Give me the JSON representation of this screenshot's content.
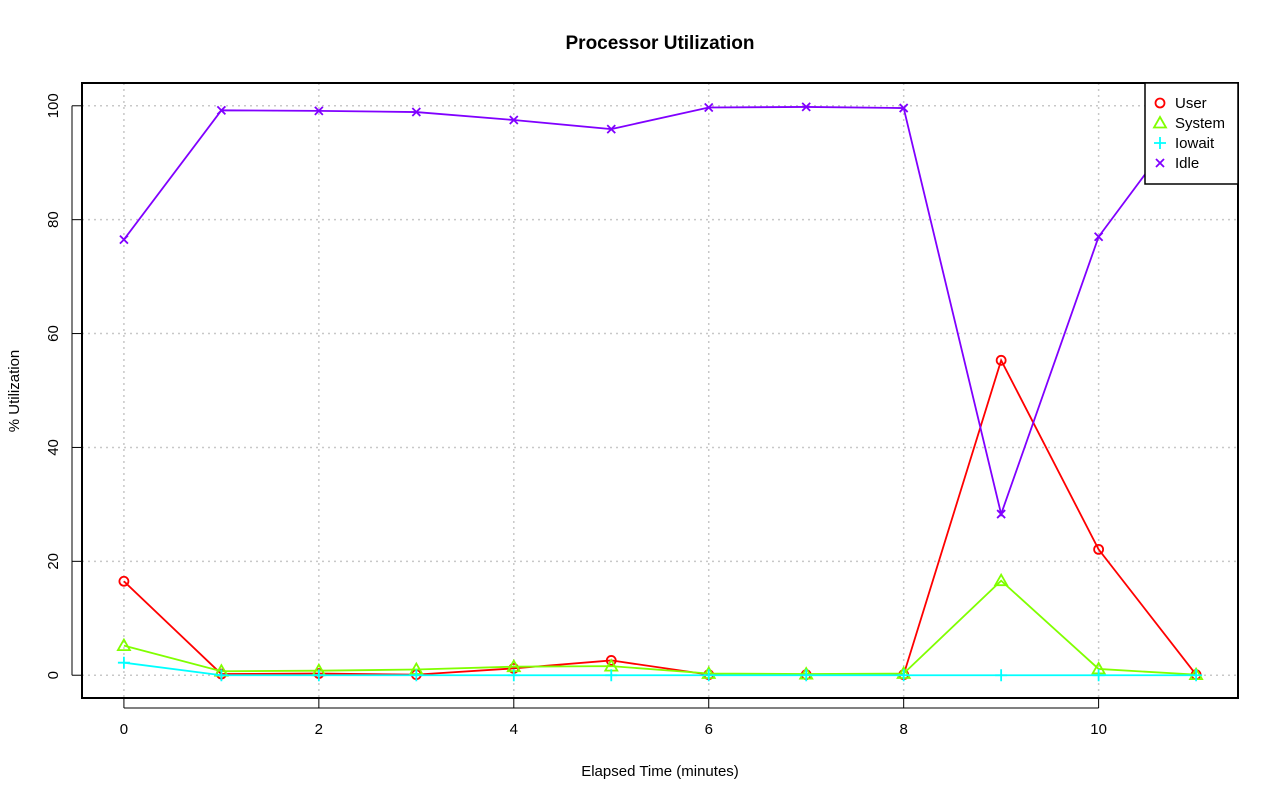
{
  "chart_data": {
    "type": "line",
    "title": "Processor Utilization",
    "xlabel": "Elapsed Time (minutes)",
    "ylabel": "% Utilization",
    "x": [
      0,
      1,
      2,
      3,
      4,
      5,
      6,
      7,
      8,
      9,
      10,
      11
    ],
    "xlim": [
      -0.43,
      11.43
    ],
    "ylim": [
      -4,
      104
    ],
    "xticks": [
      0,
      2,
      4,
      6,
      8,
      10
    ],
    "yticks": [
      0,
      20,
      40,
      60,
      80,
      100
    ],
    "grid": true,
    "legend_position": "top-right",
    "series": [
      {
        "name": "User",
        "color": "#ff0000",
        "marker": "circle",
        "values": [
          16.5,
          0.2,
          0.3,
          0.1,
          1.2,
          2.6,
          0.1,
          0.1,
          0.1,
          55.3,
          22.1,
          0.1
        ]
      },
      {
        "name": "System",
        "color": "#80ff00",
        "marker": "triangle",
        "values": [
          5.2,
          0.7,
          0.8,
          1.0,
          1.5,
          1.6,
          0.3,
          0.2,
          0.3,
          16.6,
          1.1,
          0.1
        ]
      },
      {
        "name": "Iowait",
        "color": "#00ffff",
        "marker": "plus",
        "values": [
          2.2,
          0.0,
          0.0,
          0.0,
          0.0,
          0.0,
          0.0,
          0.0,
          0.0,
          0.0,
          0.0,
          0.0
        ]
      },
      {
        "name": "Idle",
        "color": "#8000ff",
        "marker": "x",
        "values": [
          76.5,
          99.2,
          99.1,
          98.9,
          97.5,
          95.9,
          99.7,
          99.8,
          99.6,
          28.3,
          77.0,
          100.0
        ]
      }
    ]
  }
}
